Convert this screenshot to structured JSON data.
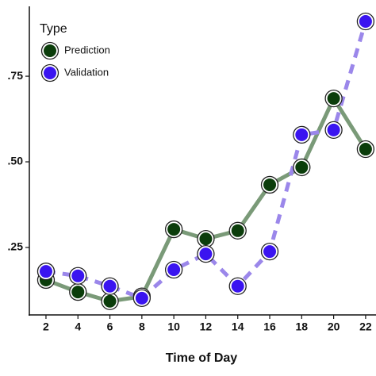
{
  "chart_data": {
    "type": "line",
    "x_label": "Time of Day",
    "legend_title": "Type",
    "legend": "top-left",
    "x": [
      2,
      4,
      6,
      8,
      10,
      12,
      14,
      16,
      18,
      20,
      22
    ],
    "series": [
      {
        "name": "Prediction",
        "color": "#0b3d0b",
        "line_color": "#7a9a78",
        "dashed": false,
        "values": [
          0.155,
          0.12,
          0.093,
          0.107,
          0.303,
          0.275,
          0.299,
          0.433,
          0.484,
          0.685,
          0.537
        ]
      },
      {
        "name": "Validation",
        "color": "#3a14f0",
        "line_color": "#9b87ea",
        "dashed": true,
        "values": [
          0.18,
          0.167,
          0.137,
          0.102,
          0.185,
          0.231,
          0.137,
          0.238,
          0.579,
          0.593,
          0.91
        ]
      }
    ],
    "xlim": [
      0.96,
      22.65
    ],
    "xticks": [
      2,
      4,
      6,
      8,
      10,
      12,
      14,
      16,
      18,
      20,
      22
    ],
    "ylim": [
      0.053,
      0.954
    ],
    "yticks": [
      {
        "value": 0.25,
        "label": ".25"
      },
      {
        "value": 0.5,
        "label": ".50"
      },
      {
        "value": 0.75,
        "label": ".75"
      }
    ],
    "grid": false
  }
}
